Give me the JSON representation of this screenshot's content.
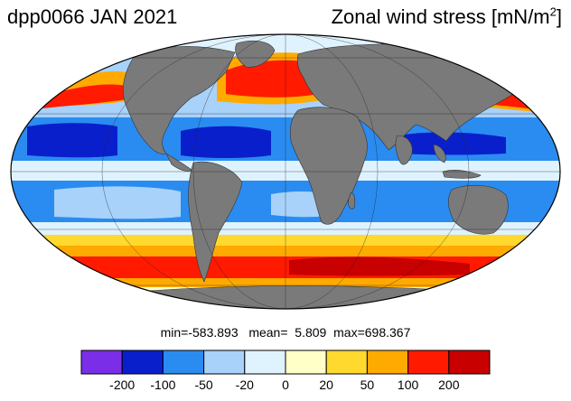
{
  "header": {
    "left_title": "dpp0066 JAN 2021",
    "right_title_main": "Zonal wind stress [mN/m",
    "right_title_sup": "2",
    "right_title_end": "]"
  },
  "stats": {
    "min_label": "min=",
    "min_value": "-583.893",
    "mean_label": "mean=",
    "mean_value": "5.809",
    "max_label": "max=",
    "max_value": "698.367"
  },
  "colorbar": {
    "colors": [
      "#7b2ee8",
      "#0a1fcc",
      "#2a8cf0",
      "#a8d2fa",
      "#dff3ff",
      "#ffffc8",
      "#ffd92e",
      "#ffaa00",
      "#ff1a00",
      "#c80000"
    ],
    "tick_labels": [
      "-200",
      "-100",
      "-50",
      "-20",
      "0",
      "20",
      "50",
      "100",
      "200"
    ]
  },
  "map": {
    "projection": "Mollweide",
    "land_color": "#7a7a7a"
  }
}
